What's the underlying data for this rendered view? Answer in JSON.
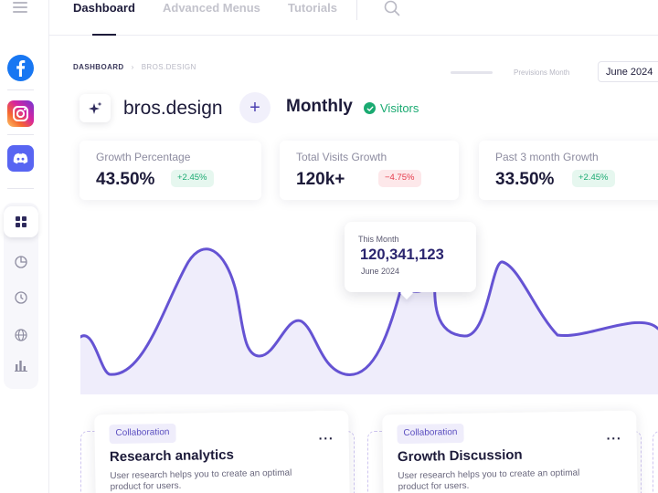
{
  "nav": {
    "tabs": [
      {
        "label": "Dashboard",
        "active": true
      },
      {
        "label": "Advanced Menus",
        "active": false
      },
      {
        "label": "Tutorials",
        "active": false
      }
    ]
  },
  "sidebar": {
    "social": [
      "facebook-icon",
      "instagram-icon",
      "discord-icon"
    ],
    "items": [
      "dashboard-grid-icon",
      "pie-chart-icon",
      "clock-icon",
      "globe-icon",
      "bar-chart-icon"
    ]
  },
  "breadcrumb": {
    "root": "DASHBOARD",
    "current": "BROS.DESIGN"
  },
  "period_selector": {
    "label": "Previsions Month",
    "value": "June 2024"
  },
  "header": {
    "brand": "bros.design",
    "period": "Monthly",
    "metric": "Visitors"
  },
  "stats": [
    {
      "label": "Growth Percentage",
      "value": "43.50%",
      "change": "+2.45%",
      "trend": "up"
    },
    {
      "label": "Total Visits Growth",
      "value": "120k+",
      "change": "−4.75%",
      "trend": "down"
    },
    {
      "label": "Past 3 month Growth",
      "value": "33.50%",
      "change": "+2.45%",
      "trend": "up"
    }
  ],
  "tooltip": {
    "label": "This Month",
    "value": "120,341,123",
    "date": "June 2024"
  },
  "cards": [
    {
      "tag": "Collaboration",
      "title": "Research analytics",
      "description": "User research helps you to create an optimal product for users."
    },
    {
      "tag": "Collaboration",
      "title": "Growth Discussion",
      "description": "User research helps you to create an optimal product for users."
    }
  ],
  "colors": {
    "accent": "#6553d3",
    "area": "#efedfb",
    "positive": "#1aaa71",
    "negative": "#e53a4b",
    "text": "#1d1b3a"
  }
}
